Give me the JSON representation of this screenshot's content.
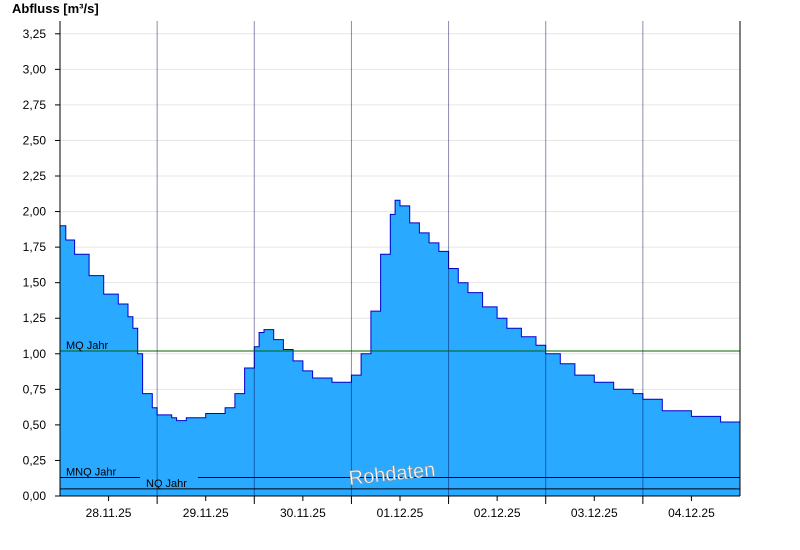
{
  "chart_data": {
    "type": "area",
    "ylabel": "Abfluss [m³/s]",
    "ylim": [
      0,
      3.34
    ],
    "xlim": [
      0,
      7
    ],
    "y_ticks": [
      "0,00",
      "0,25",
      "0,50",
      "0,75",
      "1,00",
      "1,25",
      "1,50",
      "1,75",
      "2,00",
      "2,25",
      "2,50",
      "2,75",
      "3,00",
      "3,25"
    ],
    "x_ticks": [
      "28.11.25",
      "29.11.25",
      "30.11.25",
      "01.12.25",
      "02.12.25",
      "03.12.25",
      "04.12.25"
    ],
    "grid": true,
    "fill_color": "#29a9ff",
    "line_color": "#0000cc",
    "series": [
      {
        "x_days": [
          0,
          0.06,
          0.15,
          0.3,
          0.45,
          0.6,
          0.7,
          0.75,
          0.8,
          0.85,
          0.95,
          1.0,
          1.05,
          1.15,
          1.2,
          1.3,
          1.5,
          1.6,
          1.7,
          1.8,
          1.9,
          2.0,
          2.05,
          2.1,
          2.2,
          2.3,
          2.4,
          2.5,
          2.6,
          2.8,
          2.9,
          3.0,
          3.1,
          3.2,
          3.3,
          3.4,
          3.45,
          3.5,
          3.6,
          3.7,
          3.8,
          3.9,
          4.0,
          4.1,
          4.2,
          4.35,
          4.5,
          4.6,
          4.75,
          4.9,
          5.0,
          5.15,
          5.3,
          5.5,
          5.7,
          5.9,
          6.0,
          6.2,
          6.5,
          6.8,
          7.0
        ],
        "values": [
          1.9,
          1.8,
          1.7,
          1.55,
          1.42,
          1.35,
          1.26,
          1.18,
          1.0,
          0.72,
          0.62,
          0.57,
          0.57,
          0.55,
          0.53,
          0.55,
          0.58,
          0.58,
          0.62,
          0.72,
          0.9,
          1.05,
          1.15,
          1.17,
          1.1,
          1.03,
          0.95,
          0.88,
          0.83,
          0.8,
          0.8,
          0.85,
          1.0,
          1.3,
          1.7,
          1.98,
          2.08,
          2.04,
          1.92,
          1.85,
          1.78,
          1.72,
          1.6,
          1.5,
          1.43,
          1.33,
          1.25,
          1.18,
          1.12,
          1.06,
          1.0,
          0.93,
          0.85,
          0.8,
          0.75,
          0.72,
          0.68,
          0.6,
          0.56,
          0.52,
          0.5
        ]
      }
    ],
    "reference_lines": [
      {
        "label": "MQ Jahr",
        "value": 1.02,
        "color": "#006600"
      },
      {
        "label": "MNQ Jahr",
        "value": 0.13,
        "color": "#000000"
      },
      {
        "label": "NQ Jahr",
        "value": 0.05,
        "color": "#000000"
      }
    ],
    "annotation": "Rohdaten"
  }
}
